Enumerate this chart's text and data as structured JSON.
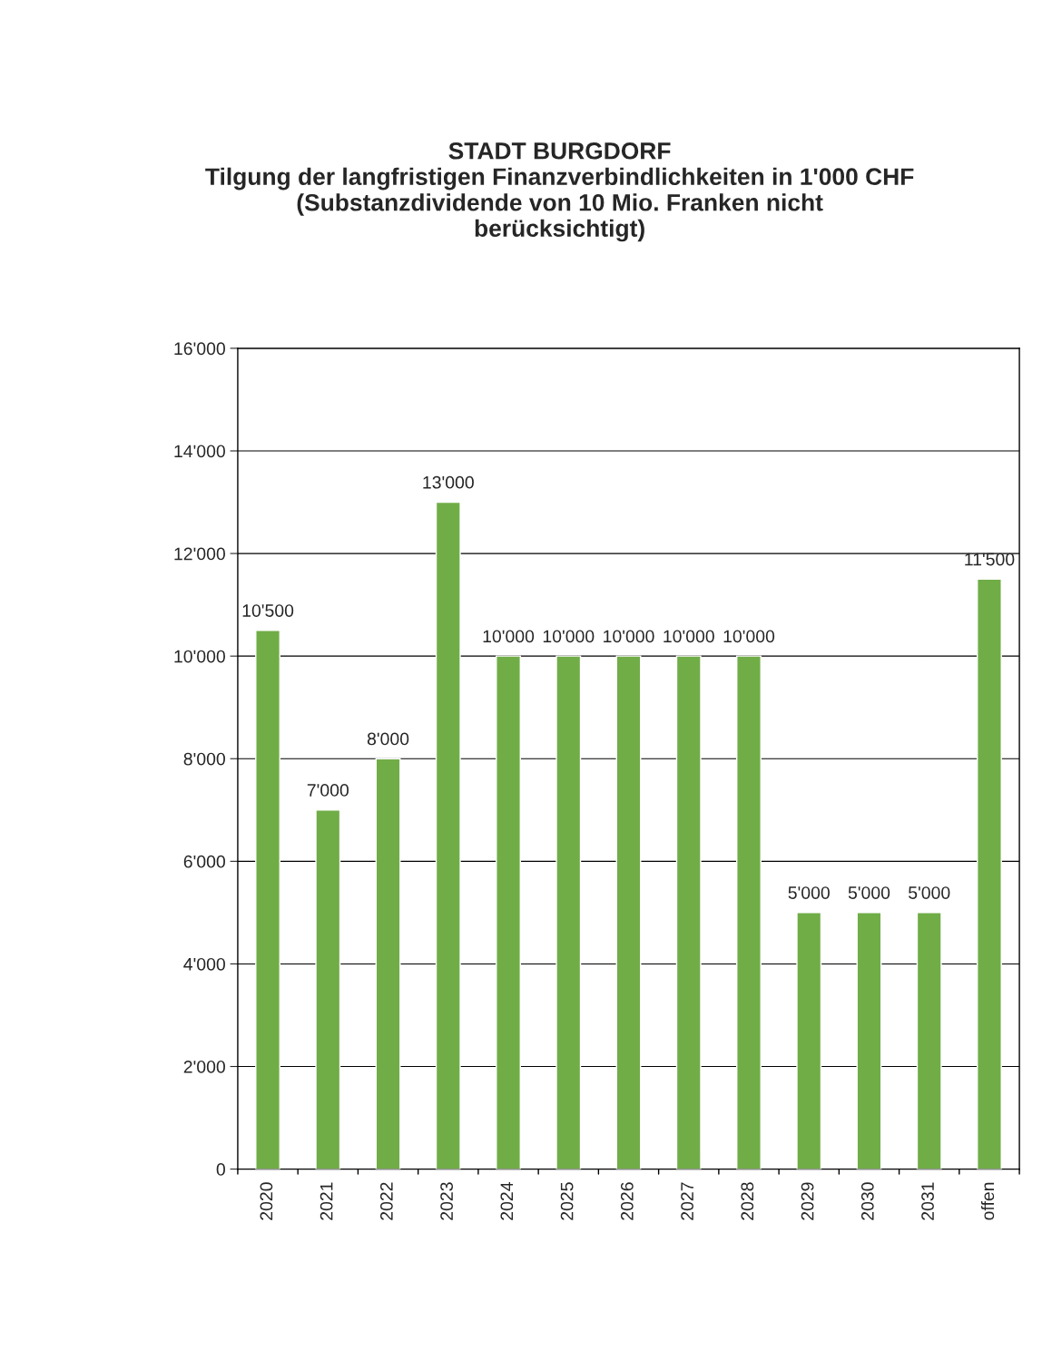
{
  "chart_data": {
    "type": "bar",
    "title": "STADT BURGDORF\nTilgung der langfristigen Finanzverbindlichkeiten in 1'000 CHF\n(Substanzdividende von 10 Mio. Franken nicht\nberücksichtigt)",
    "categories": [
      "2020",
      "2021",
      "2022",
      "2023",
      "2024",
      "2025",
      "2026",
      "2027",
      "2028",
      "2029",
      "2030",
      "2031",
      "offen"
    ],
    "values": [
      10500,
      7000,
      8000,
      13000,
      10000,
      10000,
      10000,
      10000,
      10000,
      5000,
      5000,
      5000,
      11500
    ],
    "value_labels": [
      "10'500",
      "7'000",
      "8'000",
      "13'000",
      "10'000",
      "10'000",
      "10'000",
      "10'000",
      "10'000",
      "5'000",
      "5'000",
      "5'000",
      "11'500"
    ],
    "color": "#70ad47",
    "ylim": [
      0,
      16000
    ],
    "yticks": [
      {
        "value": 0,
        "label": "0"
      },
      {
        "value": 2000,
        "label": "2'000"
      },
      {
        "value": 4000,
        "label": "4'000"
      },
      {
        "value": 6000,
        "label": "6'000"
      },
      {
        "value": 8000,
        "label": "8'000"
      },
      {
        "value": 10000,
        "label": "10'000"
      },
      {
        "value": 12000,
        "label": "12'000"
      },
      {
        "value": 14000,
        "label": "14'000"
      },
      {
        "value": 16000,
        "label": "16'000"
      }
    ],
    "grid": "y",
    "legend": false
  }
}
